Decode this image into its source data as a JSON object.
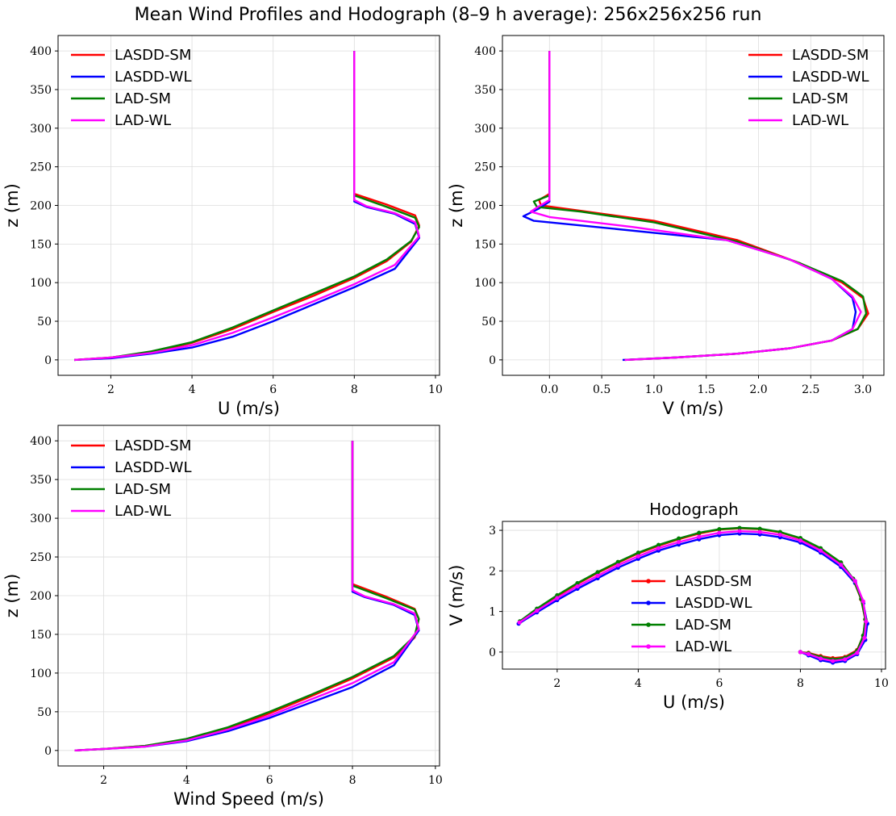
{
  "figure": {
    "title": "Mean Wind Profiles and Hodograph (8–9 h average): 256x256x256 run"
  },
  "series_colors": {
    "LASDD-SM": "#ff0000",
    "LASDD-WL": "#0000ff",
    "LAD-SM": "#008000",
    "LAD-WL": "#ff00ff"
  },
  "chart_data": [
    {
      "id": "u-profile",
      "type": "line",
      "title": "",
      "xlabel": "U (m/s)",
      "ylabel": "z (m)",
      "xlim": [
        0.7,
        10.1
      ],
      "ylim": [
        -20,
        420
      ],
      "xticks": [
        2,
        4,
        6,
        8,
        10
      ],
      "yticks": [
        0,
        50,
        100,
        150,
        200,
        250,
        300,
        350,
        400
      ],
      "grid": true,
      "legend": "top-left",
      "series": [
        {
          "name": "LASDD-SM",
          "x": [
            1.1,
            2.0,
            3.0,
            4.0,
            5.0,
            6.0,
            7.0,
            8.0,
            8.8,
            9.4,
            9.6,
            9.5,
            8.8,
            8.0,
            8.0,
            8.0
          ],
          "y": [
            0,
            3,
            10,
            22,
            40,
            62,
            83,
            106,
            128,
            153,
            174,
            187,
            201,
            215,
            300,
            400
          ]
        },
        {
          "name": "LASDD-WL",
          "x": [
            1.1,
            2.0,
            3.0,
            4.0,
            5.0,
            6.0,
            7.0,
            8.0,
            9.0,
            9.6,
            9.5,
            9.0,
            8.3,
            8.0,
            8.0,
            8.0
          ],
          "y": [
            0,
            2,
            8,
            16,
            30,
            50,
            72,
            94,
            118,
            158,
            176,
            189,
            198,
            205,
            300,
            400
          ]
        },
        {
          "name": "LAD-SM",
          "x": [
            1.1,
            2.0,
            3.0,
            4.0,
            5.0,
            6.0,
            7.0,
            8.0,
            8.8,
            9.4,
            9.6,
            9.5,
            8.8,
            8.0,
            8.0,
            8.0
          ],
          "y": [
            0,
            3,
            11,
            23,
            42,
            64,
            86,
            108,
            130,
            154,
            172,
            184,
            198,
            213,
            300,
            400
          ]
        },
        {
          "name": "LAD-WL",
          "x": [
            1.1,
            2.0,
            3.0,
            4.0,
            5.0,
            6.0,
            7.0,
            8.0,
            9.0,
            9.6,
            9.5,
            9.0,
            8.3,
            8.0,
            8.0,
            8.0
          ],
          "y": [
            0,
            3,
            9,
            19,
            35,
            55,
            76,
            98,
            123,
            160,
            178,
            190,
            199,
            207,
            300,
            400
          ]
        }
      ]
    },
    {
      "id": "v-profile",
      "type": "line",
      "title": "",
      "xlabel": "V (m/s)",
      "ylabel": "z (m)",
      "xlim": [
        -0.45,
        3.2
      ],
      "ylim": [
        -20,
        420
      ],
      "xticks": [
        0.0,
        0.5,
        1.0,
        1.5,
        2.0,
        2.5,
        3.0
      ],
      "yticks": [
        0,
        50,
        100,
        150,
        200,
        250,
        300,
        350,
        400
      ],
      "grid": true,
      "legend": "top-right",
      "series": [
        {
          "name": "LASDD-SM",
          "x": [
            0.72,
            1.2,
            1.8,
            2.3,
            2.7,
            2.95,
            3.05,
            3.0,
            2.8,
            2.4,
            1.8,
            1.0,
            0.3,
            -0.08,
            -0.1,
            0.0,
            0.0,
            0.0
          ],
          "y": [
            0,
            3,
            8,
            15,
            25,
            40,
            60,
            80,
            100,
            125,
            155,
            180,
            193,
            200,
            207,
            215,
            300,
            400
          ]
        },
        {
          "name": "LASDD-WL",
          "x": [
            0.7,
            1.2,
            1.8,
            2.3,
            2.7,
            2.9,
            2.93,
            2.9,
            2.7,
            2.3,
            1.7,
            0.6,
            -0.15,
            -0.25,
            -0.1,
            0.0,
            0.0,
            0.0
          ],
          "y": [
            0,
            3,
            8,
            15,
            25,
            40,
            62,
            80,
            105,
            130,
            155,
            170,
            180,
            186,
            196,
            205,
            300,
            400
          ]
        },
        {
          "name": "LAD-SM",
          "x": [
            0.72,
            1.2,
            1.8,
            2.3,
            2.7,
            2.95,
            3.03,
            3.0,
            2.8,
            2.4,
            1.8,
            1.0,
            0.3,
            -0.12,
            -0.15,
            0.0,
            0.0,
            0.0
          ],
          "y": [
            0,
            3,
            8,
            15,
            25,
            40,
            60,
            82,
            102,
            125,
            153,
            178,
            192,
            198,
            205,
            213,
            300,
            400
          ]
        },
        {
          "name": "LAD-WL",
          "x": [
            0.72,
            1.2,
            1.8,
            2.3,
            2.7,
            2.9,
            2.98,
            2.9,
            2.7,
            2.3,
            1.7,
            0.8,
            0.0,
            -0.18,
            -0.1,
            0.0,
            0.0,
            0.0
          ],
          "y": [
            0,
            3,
            8,
            15,
            25,
            40,
            62,
            82,
            105,
            130,
            155,
            172,
            185,
            192,
            199,
            207,
            300,
            400
          ]
        }
      ]
    },
    {
      "id": "speed-profile",
      "type": "line",
      "title": "",
      "xlabel": "Wind Speed (m/s)",
      "ylabel": "z (m)",
      "xlim": [
        0.9,
        10.1
      ],
      "ylim": [
        -20,
        420
      ],
      "xticks": [
        2,
        4,
        6,
        8,
        10
      ],
      "yticks": [
        0,
        50,
        100,
        150,
        200,
        250,
        300,
        350,
        400
      ],
      "grid": true,
      "legend": "top-left",
      "series": [
        {
          "name": "LASDD-SM",
          "x": [
            1.3,
            2.0,
            3.0,
            4.0,
            5.0,
            6.0,
            7.0,
            8.0,
            9.0,
            9.5,
            9.6,
            9.5,
            8.8,
            8.0,
            8.0,
            8.0
          ],
          "y": [
            0,
            2,
            6,
            14,
            28,
            48,
            70,
            93,
            120,
            146,
            170,
            183,
            199,
            215,
            300,
            400
          ]
        },
        {
          "name": "LASDD-WL",
          "x": [
            1.3,
            2.0,
            3.0,
            4.0,
            5.0,
            6.0,
            7.0,
            8.0,
            9.0,
            9.6,
            9.5,
            9.0,
            8.3,
            8.0,
            8.0,
            8.0
          ],
          "y": [
            0,
            2,
            5,
            12,
            25,
            42,
            62,
            82,
            110,
            155,
            175,
            188,
            198,
            205,
            300,
            400
          ]
        },
        {
          "name": "LAD-SM",
          "x": [
            1.3,
            2.0,
            3.0,
            4.0,
            5.0,
            6.0,
            7.0,
            8.0,
            9.0,
            9.5,
            9.6,
            9.5,
            8.8,
            8.0,
            8.0,
            8.0
          ],
          "y": [
            0,
            2,
            6,
            15,
            30,
            50,
            72,
            95,
            122,
            148,
            170,
            182,
            197,
            213,
            300,
            400
          ]
        },
        {
          "name": "LAD-WL",
          "x": [
            1.3,
            2.0,
            3.0,
            4.0,
            5.0,
            6.0,
            7.0,
            8.0,
            9.0,
            9.6,
            9.5,
            9.0,
            8.3,
            8.0,
            8.0,
            8.0
          ],
          "y": [
            0,
            2,
            5,
            13,
            27,
            45,
            66,
            87,
            114,
            157,
            177,
            189,
            199,
            207,
            300,
            400
          ]
        }
      ]
    },
    {
      "id": "hodograph",
      "type": "line",
      "title": "Hodograph",
      "xlabel": "U (m/s)",
      "ylabel": "V (m/s)",
      "xlim": [
        0.65,
        10.1
      ],
      "ylim": [
        -0.42,
        3.22
      ],
      "xticks": [
        2,
        4,
        6,
        8,
        10
      ],
      "yticks": [
        0,
        1,
        2,
        3
      ],
      "grid": true,
      "legend": "center",
      "markers": true,
      "series": [
        {
          "name": "LASDD-SM",
          "x": [
            1.08,
            1.5,
            2.0,
            2.5,
            3.0,
            3.5,
            4.0,
            4.5,
            5.0,
            5.5,
            6.0,
            6.5,
            7.0,
            7.5,
            8.0,
            8.5,
            9.0,
            9.3,
            9.5,
            9.6,
            9.55,
            9.4,
            9.1,
            8.8,
            8.5,
            8.2,
            8.0
          ],
          "y": [
            0.74,
            1.05,
            1.38,
            1.68,
            1.95,
            2.2,
            2.43,
            2.62,
            2.78,
            2.92,
            3.02,
            3.05,
            3.03,
            2.95,
            2.8,
            2.55,
            2.2,
            1.8,
            1.3,
            0.8,
            0.4,
            0.05,
            -0.12,
            -0.15,
            -0.1,
            -0.02,
            0.0
          ]
        },
        {
          "name": "LASDD-WL",
          "x": [
            1.05,
            1.5,
            2.0,
            2.5,
            3.0,
            3.5,
            4.0,
            4.5,
            5.0,
            5.5,
            6.0,
            6.5,
            7.0,
            7.5,
            8.0,
            8.5,
            9.0,
            9.35,
            9.55,
            9.65,
            9.6,
            9.4,
            9.1,
            8.8,
            8.5,
            8.2,
            8.0
          ],
          "y": [
            0.7,
            0.98,
            1.28,
            1.56,
            1.82,
            2.08,
            2.3,
            2.5,
            2.65,
            2.78,
            2.88,
            2.92,
            2.9,
            2.83,
            2.7,
            2.45,
            2.1,
            1.7,
            1.2,
            0.7,
            0.3,
            -0.05,
            -0.22,
            -0.26,
            -0.2,
            -0.08,
            0.0
          ]
        },
        {
          "name": "LAD-SM",
          "x": [
            1.08,
            1.5,
            2.0,
            2.5,
            3.0,
            3.5,
            4.0,
            4.5,
            5.0,
            5.5,
            6.0,
            6.5,
            7.0,
            7.5,
            8.0,
            8.5,
            9.0,
            9.3,
            9.5,
            9.6,
            9.55,
            9.4,
            9.1,
            8.8,
            8.5,
            8.2,
            8.0
          ],
          "y": [
            0.76,
            1.07,
            1.4,
            1.7,
            1.97,
            2.22,
            2.45,
            2.64,
            2.8,
            2.94,
            3.03,
            3.06,
            3.04,
            2.96,
            2.81,
            2.56,
            2.21,
            1.81,
            1.31,
            0.81,
            0.41,
            0.03,
            -0.14,
            -0.18,
            -0.12,
            -0.03,
            0.0
          ]
        },
        {
          "name": "LAD-WL",
          "x": [
            1.07,
            1.5,
            2.0,
            2.5,
            3.0,
            3.5,
            4.0,
            4.5,
            5.0,
            5.5,
            6.0,
            6.5,
            7.0,
            7.5,
            8.0,
            8.5,
            9.0,
            9.35,
            9.55,
            9.62,
            9.58,
            9.4,
            9.1,
            8.8,
            8.5,
            8.2,
            8.0
          ],
          "y": [
            0.73,
            1.02,
            1.33,
            1.62,
            1.88,
            2.14,
            2.36,
            2.56,
            2.71,
            2.84,
            2.94,
            2.98,
            2.96,
            2.89,
            2.75,
            2.5,
            2.15,
            1.75,
            1.25,
            0.75,
            0.35,
            -0.02,
            -0.18,
            -0.22,
            -0.16,
            -0.05,
            0.0
          ]
        }
      ]
    }
  ]
}
